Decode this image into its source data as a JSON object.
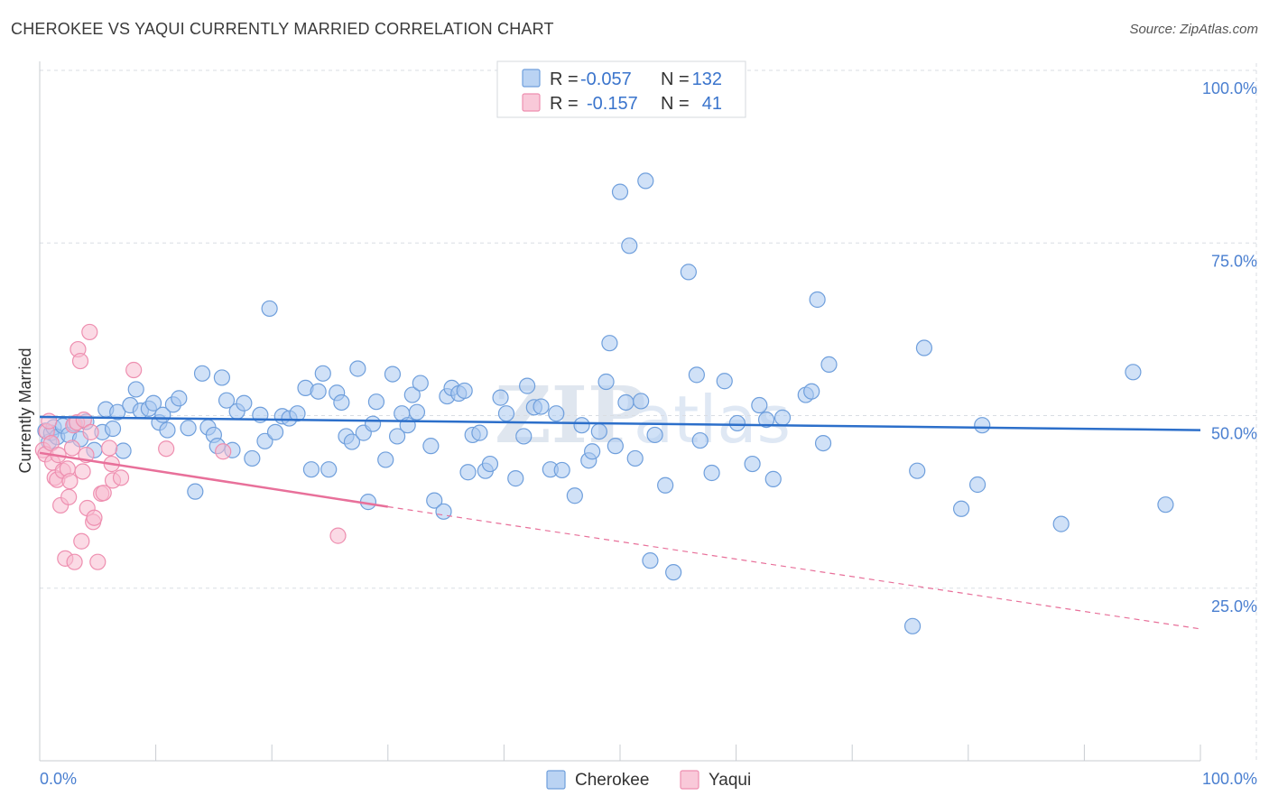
{
  "title": "CHEROKEE VS YAQUI CURRENTLY MARRIED CORRELATION CHART",
  "source": "Source: ZipAtlas.com",
  "watermark": {
    "zip": "ZIP",
    "atlas": "atlas"
  },
  "colors": {
    "cherokee_fill": "#a9c8f0",
    "cherokee_stroke": "#6f9fdc",
    "cherokee_line": "#2c6fca",
    "yaqui_fill": "#f7bcd0",
    "yaqui_stroke": "#ee8fb0",
    "yaqui_line": "#e8709a",
    "grid": "#d9dde3",
    "axis_label": "#4a7fd0"
  },
  "legend": {
    "r_label": "R =",
    "n_label": "N =",
    "cherokee": {
      "r": "-0.057",
      "n": "132"
    },
    "yaqui": {
      "r": "-0.157",
      "n": "41"
    }
  },
  "chart_data": {
    "type": "scatter",
    "title": "CHEROKEE VS YAQUI CURRENTLY MARRIED CORRELATION CHART",
    "xlabel": "",
    "ylabel": "Currently Married",
    "xlim": [
      0,
      100
    ],
    "ylim": [
      0,
      100
    ],
    "x_tick_labels": [
      "0.0%",
      "100.0%"
    ],
    "y_tick_labels": [
      "25.0%",
      "50.0%",
      "75.0%",
      "100.0%"
    ],
    "y_ticks": [
      25,
      50,
      75,
      100
    ],
    "legend_position": "top-center",
    "series": [
      {
        "name": "Cherokee",
        "trend": {
          "x": [
            0,
            100
          ],
          "y": [
            49.8,
            47.9
          ],
          "style": "solid"
        },
        "points": [
          [
            0.5,
            47.8
          ],
          [
            0.8,
            46.2
          ],
          [
            1.0,
            47.5
          ],
          [
            1.2,
            48.3
          ],
          [
            1.5,
            46.9
          ],
          [
            2.0,
            48.5
          ],
          [
            2.5,
            47.2
          ],
          [
            3.0,
            48.8
          ],
          [
            3.5,
            46.6
          ],
          [
            4.0,
            49.1
          ],
          [
            4.7,
            45.0
          ],
          [
            5.4,
            47.6
          ],
          [
            5.7,
            50.9
          ],
          [
            6.3,
            48.1
          ],
          [
            6.7,
            50.5
          ],
          [
            7.2,
            44.9
          ],
          [
            7.8,
            51.5
          ],
          [
            8.3,
            53.8
          ],
          [
            8.7,
            50.7
          ],
          [
            9.4,
            51.0
          ],
          [
            9.8,
            51.8
          ],
          [
            10.3,
            49.0
          ],
          [
            10.6,
            50.1
          ],
          [
            11.0,
            47.9
          ],
          [
            11.5,
            51.6
          ],
          [
            12.0,
            52.5
          ],
          [
            12.8,
            48.2
          ],
          [
            13.4,
            39.0
          ],
          [
            14.0,
            56.1
          ],
          [
            14.5,
            48.3
          ],
          [
            15.0,
            47.2
          ],
          [
            15.3,
            45.6
          ],
          [
            15.7,
            55.5
          ],
          [
            16.1,
            52.2
          ],
          [
            16.6,
            45.0
          ],
          [
            17.0,
            50.6
          ],
          [
            17.6,
            51.8
          ],
          [
            18.3,
            43.8
          ],
          [
            19.0,
            50.1
          ],
          [
            19.4,
            46.3
          ],
          [
            19.8,
            65.5
          ],
          [
            20.3,
            47.6
          ],
          [
            20.9,
            49.9
          ],
          [
            21.5,
            49.6
          ],
          [
            22.2,
            50.3
          ],
          [
            22.9,
            54.0
          ],
          [
            23.4,
            42.2
          ],
          [
            24.0,
            53.5
          ],
          [
            24.4,
            56.1
          ],
          [
            24.9,
            42.2
          ],
          [
            25.6,
            53.3
          ],
          [
            26.0,
            51.9
          ],
          [
            26.4,
            47.0
          ],
          [
            26.9,
            46.2
          ],
          [
            27.4,
            56.8
          ],
          [
            27.9,
            47.5
          ],
          [
            28.3,
            37.5
          ],
          [
            28.7,
            48.8
          ],
          [
            29.0,
            52.0
          ],
          [
            29.8,
            43.6
          ],
          [
            30.4,
            56.0
          ],
          [
            30.8,
            47.0
          ],
          [
            31.2,
            50.3
          ],
          [
            31.7,
            48.6
          ],
          [
            32.1,
            53.0
          ],
          [
            32.5,
            50.5
          ],
          [
            32.8,
            54.7
          ],
          [
            33.7,
            45.6
          ],
          [
            34.0,
            37.7
          ],
          [
            34.8,
            36.1
          ],
          [
            35.1,
            52.8
          ],
          [
            35.5,
            54.0
          ],
          [
            36.1,
            53.2
          ],
          [
            36.6,
            53.6
          ],
          [
            36.9,
            41.8
          ],
          [
            37.3,
            47.2
          ],
          [
            37.9,
            47.5
          ],
          [
            38.4,
            42.0
          ],
          [
            38.8,
            43.0
          ],
          [
            39.7,
            52.6
          ],
          [
            40.2,
            50.3
          ],
          [
            41.0,
            40.9
          ],
          [
            41.7,
            47.0
          ],
          [
            42.0,
            54.3
          ],
          [
            42.6,
            51.2
          ],
          [
            43.2,
            51.3
          ],
          [
            44.0,
            42.2
          ],
          [
            44.5,
            50.3
          ],
          [
            45.0,
            42.1
          ],
          [
            46.1,
            38.4
          ],
          [
            46.7,
            48.6
          ],
          [
            47.3,
            43.5
          ],
          [
            47.6,
            44.8
          ],
          [
            48.2,
            47.7
          ],
          [
            48.8,
            54.9
          ],
          [
            49.1,
            60.5
          ],
          [
            49.6,
            45.6
          ],
          [
            50.0,
            82.4
          ],
          [
            50.5,
            51.9
          ],
          [
            50.8,
            74.6
          ],
          [
            51.3,
            43.8
          ],
          [
            51.8,
            52.1
          ],
          [
            52.2,
            84.0
          ],
          [
            52.6,
            29.0
          ],
          [
            53.0,
            47.2
          ],
          [
            53.9,
            39.9
          ],
          [
            54.6,
            27.3
          ],
          [
            55.9,
            70.8
          ],
          [
            56.6,
            55.9
          ],
          [
            56.9,
            46.4
          ],
          [
            57.9,
            41.7
          ],
          [
            59.0,
            55.0
          ],
          [
            60.1,
            48.9
          ],
          [
            61.4,
            43.0
          ],
          [
            62.0,
            51.5
          ],
          [
            62.6,
            49.4
          ],
          [
            63.2,
            40.8
          ],
          [
            64.0,
            49.7
          ],
          [
            66.0,
            53.0
          ],
          [
            66.5,
            53.5
          ],
          [
            67.0,
            66.8
          ],
          [
            67.5,
            46.0
          ],
          [
            68.0,
            57.4
          ],
          [
            75.2,
            19.5
          ],
          [
            75.6,
            42.0
          ],
          [
            76.2,
            59.8
          ],
          [
            79.4,
            36.5
          ],
          [
            80.8,
            40.0
          ],
          [
            81.2,
            48.6
          ],
          [
            88.0,
            34.3
          ],
          [
            94.2,
            56.3
          ],
          [
            97.0,
            37.1
          ]
        ]
      },
      {
        "name": "Yaqui",
        "trend": {
          "x": [
            0,
            30
          ],
          "y": [
            44.6,
            36.8
          ],
          "style": "solid"
        },
        "trend_extension": {
          "x": [
            30,
            100
          ],
          "y": [
            36.8,
            19.1
          ],
          "style": "dashed"
        },
        "points": [
          [
            0.3,
            45.0
          ],
          [
            0.5,
            44.4
          ],
          [
            0.6,
            47.7
          ],
          [
            0.8,
            49.2
          ],
          [
            1.0,
            46.0
          ],
          [
            1.1,
            43.2
          ],
          [
            1.3,
            41.0
          ],
          [
            1.5,
            40.7
          ],
          [
            1.6,
            44.3
          ],
          [
            1.8,
            37.0
          ],
          [
            2.0,
            42.0
          ],
          [
            2.2,
            29.3
          ],
          [
            2.4,
            42.3
          ],
          [
            2.5,
            38.2
          ],
          [
            2.6,
            40.5
          ],
          [
            2.8,
            45.3
          ],
          [
            2.9,
            48.6
          ],
          [
            3.0,
            28.8
          ],
          [
            3.2,
            49.0
          ],
          [
            3.3,
            59.6
          ],
          [
            3.5,
            57.9
          ],
          [
            3.6,
            31.8
          ],
          [
            3.7,
            41.9
          ],
          [
            3.8,
            49.4
          ],
          [
            4.0,
            44.3
          ],
          [
            4.1,
            36.6
          ],
          [
            4.3,
            62.1
          ],
          [
            4.4,
            47.6
          ],
          [
            4.6,
            34.6
          ],
          [
            4.7,
            35.2
          ],
          [
            5.0,
            28.8
          ],
          [
            5.3,
            38.7
          ],
          [
            5.5,
            38.8
          ],
          [
            6.0,
            45.3
          ],
          [
            6.2,
            43.0
          ],
          [
            6.3,
            40.6
          ],
          [
            7.0,
            41.0
          ],
          [
            8.1,
            56.6
          ],
          [
            10.9,
            45.2
          ],
          [
            15.8,
            44.8
          ],
          [
            25.7,
            32.6
          ]
        ]
      }
    ]
  },
  "bottom_legend": {
    "cherokee": "Cherokee",
    "yaqui": "Yaqui"
  }
}
